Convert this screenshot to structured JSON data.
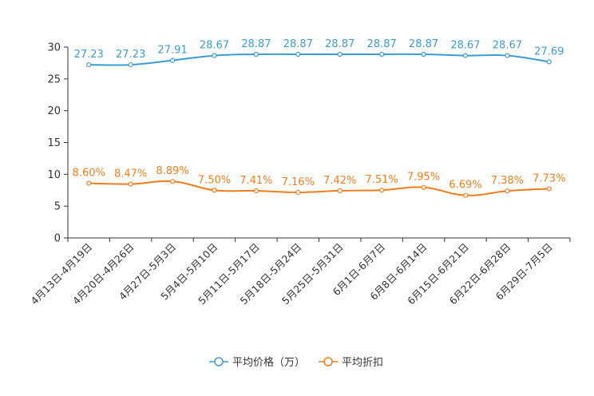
{
  "chart_data": {
    "type": "line",
    "categories": [
      "4月13日-4月19日",
      "4月20日-4月26日",
      "4月27日-5月3日",
      "5月4日-5月10日",
      "5月11日-5月17日",
      "5月18日-5月24日",
      "5月25日-5月31日",
      "6月1日-6月7日",
      "6月8日-6月14日",
      "6月15日-6月21日",
      "6月22日-6月28日",
      "6月29日-7月5日"
    ],
    "series": [
      {
        "name": "平均价格（万）",
        "color": "#3d9bd1",
        "values": [
          27.23,
          27.23,
          27.91,
          28.67,
          28.87,
          28.87,
          28.87,
          28.87,
          28.87,
          28.67,
          28.67,
          27.69
        ],
        "labels": [
          "27.23",
          "27.23",
          "27.91",
          "28.67",
          "28.87",
          "28.87",
          "28.87",
          "28.87",
          "28.87",
          "28.67",
          "28.67",
          "27.69"
        ]
      },
      {
        "name": "平均折扣",
        "color": "#f07d1a",
        "values": [
          8.6,
          8.47,
          8.89,
          7.5,
          7.41,
          7.16,
          7.42,
          7.51,
          7.95,
          6.69,
          7.38,
          7.73
        ],
        "labels": [
          "8.60%",
          "8.47%",
          "8.89%",
          "7.50%",
          "7.41%",
          "7.16%",
          "7.42%",
          "7.51%",
          "7.95%",
          "6.69%",
          "7.38%",
          "7.73%"
        ]
      }
    ],
    "ylim": [
      0,
      30
    ],
    "yticks": [
      "0",
      "5",
      "10",
      "15",
      "20",
      "25",
      "30"
    ],
    "title": "",
    "xlabel": "",
    "ylabel": "",
    "legend_position": "bottom-center"
  }
}
